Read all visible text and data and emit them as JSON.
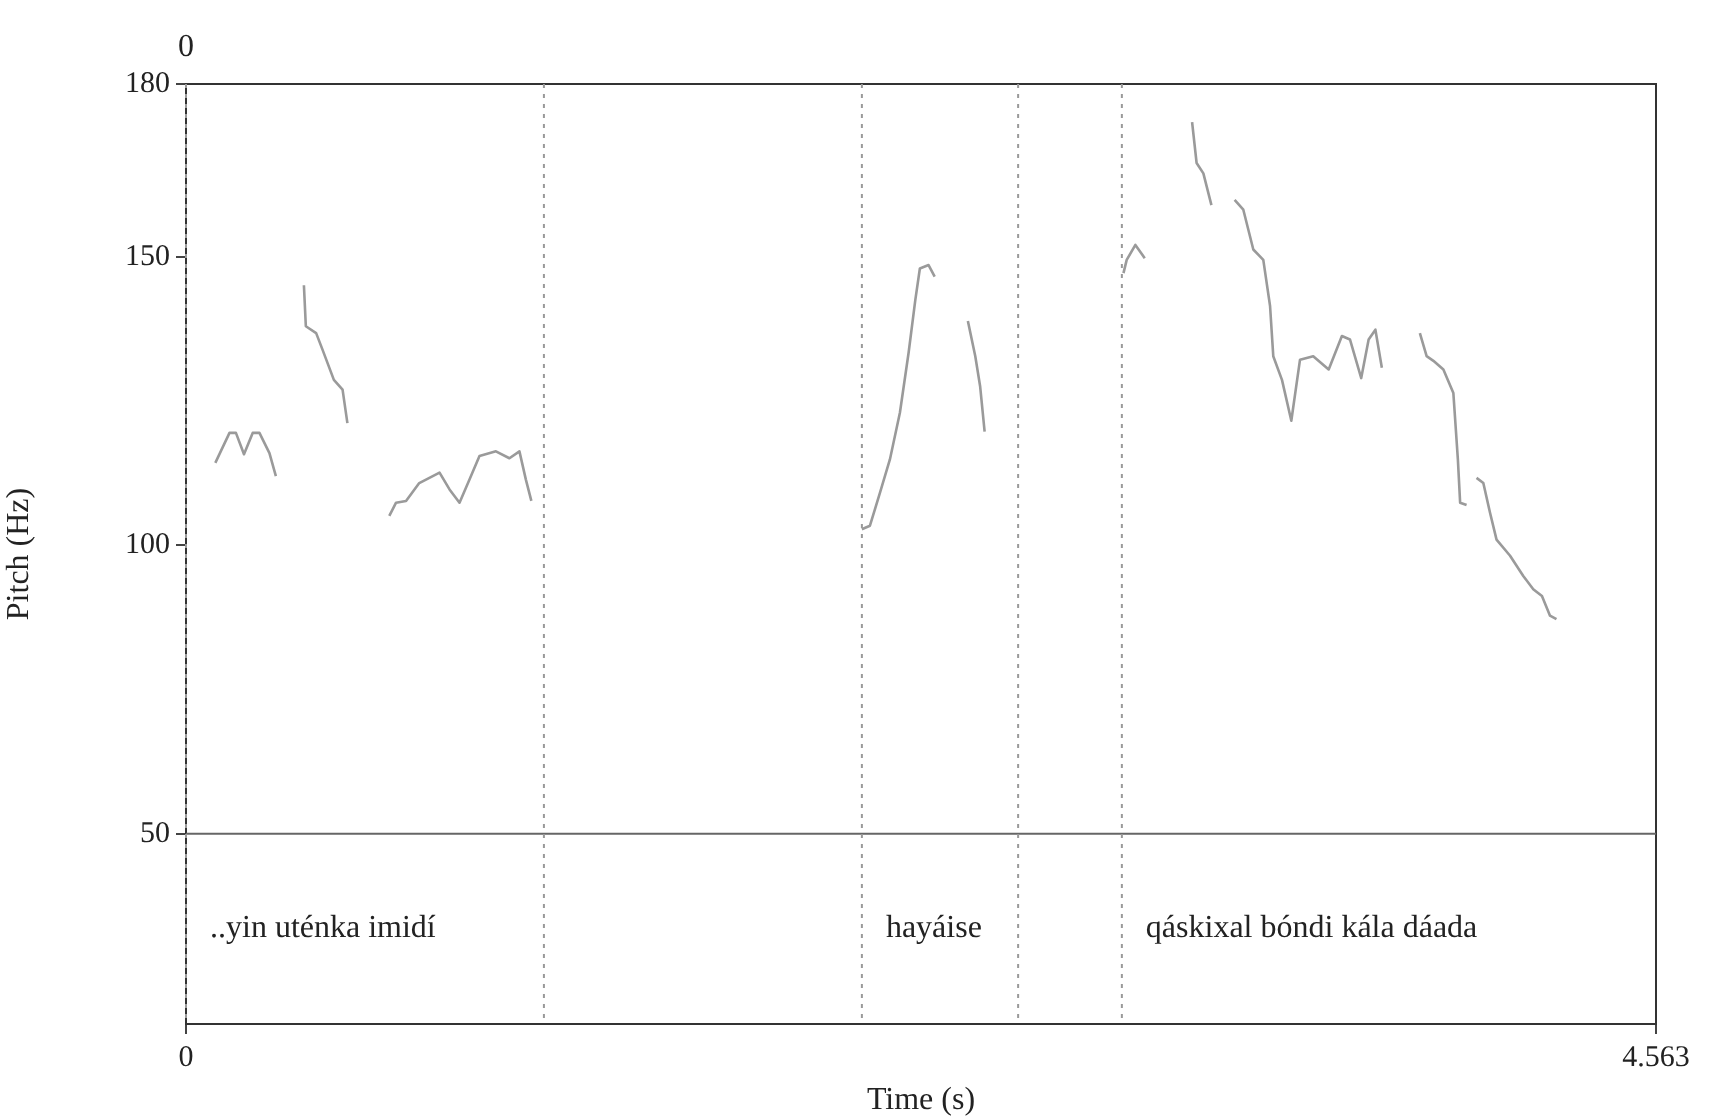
{
  "chart_data": {
    "type": "line",
    "xlabel": "Time (s)",
    "ylabel": "Pitch (Hz)",
    "xlim": [
      0,
      4.563
    ],
    "xticks": [
      0,
      4.563
    ],
    "ylim": [
      17,
      180
    ],
    "yticks": [
      50,
      100,
      150,
      180
    ],
    "marker": "none",
    "line_style": "solid",
    "legend": false,
    "series": [
      {
        "color": "#9a9a9a",
        "x": [
          0.091,
          0.135,
          0.155,
          0.18,
          0.207,
          0.228,
          0.259,
          0.279
        ],
        "values": [
          114.3,
          119.5,
          119.5,
          115.8,
          119.5,
          119.5,
          116.0,
          112.0
        ]
      },
      {
        "color": "#9a9a9a",
        "x": [
          0.366,
          0.372,
          0.404,
          0.424,
          0.459,
          0.486,
          0.501
        ],
        "values": [
          145.1,
          138.0,
          136.8,
          133.9,
          128.7,
          127.0,
          121.2
        ]
      },
      {
        "color": "#9a9a9a",
        "x": [
          0.631,
          0.652,
          0.683,
          0.724,
          0.787,
          0.818,
          0.849,
          0.88,
          0.911,
          0.962,
          1.004,
          1.035,
          1.055,
          1.072
        ],
        "values": [
          105.1,
          107.4,
          107.7,
          110.8,
          112.6,
          109.7,
          107.4,
          111.4,
          115.5,
          116.3,
          115.1,
          116.3,
          111.4,
          107.7
        ]
      },
      {
        "color": "#9a9a9a",
        "x": [
          2.098,
          2.123,
          2.154,
          2.185,
          2.216,
          2.243,
          2.264,
          2.278,
          2.305,
          2.324
        ],
        "values": [
          102.8,
          103.4,
          109.1,
          114.9,
          123.0,
          133.4,
          142.6,
          148.0,
          148.6,
          146.6
        ]
      },
      {
        "color": "#9a9a9a",
        "x": [
          2.427,
          2.45,
          2.465,
          2.479
        ],
        "values": [
          138.9,
          132.8,
          127.6,
          119.7
        ]
      },
      {
        "color": "#9a9a9a",
        "x": [
          2.91,
          2.92,
          2.947,
          2.976
        ],
        "values": [
          147.2,
          149.5,
          152.1,
          149.8
        ]
      },
      {
        "color": "#9a9a9a",
        "x": [
          3.123,
          3.137,
          3.158,
          3.183
        ],
        "values": [
          173.4,
          166.3,
          164.5,
          159.0
        ]
      },
      {
        "color": "#9a9a9a",
        "x": [
          3.255,
          3.282,
          3.313,
          3.344,
          3.365,
          3.375,
          3.402,
          3.431,
          3.458,
          3.499,
          3.547,
          3.588,
          3.613,
          3.648,
          3.671,
          3.692,
          3.712
        ],
        "values": [
          159.9,
          158.2,
          151.3,
          149.5,
          141.5,
          132.8,
          128.7,
          121.6,
          132.2,
          132.8,
          130.5,
          136.3,
          135.7,
          129.0,
          135.7,
          137.4,
          130.8
        ]
      },
      {
        "color": "#9a9a9a",
        "x": [
          3.83,
          3.851,
          3.872,
          3.903,
          3.934,
          3.948,
          3.955,
          3.975
        ],
        "values": [
          136.8,
          132.8,
          132.0,
          130.5,
          126.4,
          114.9,
          107.4,
          107.0
        ]
      },
      {
        "color": "#9a9a9a",
        "x": [
          4.006,
          4.027,
          4.048,
          4.068,
          4.11,
          4.151,
          4.182,
          4.209,
          4.234,
          4.254
        ],
        "values": [
          111.7,
          110.8,
          105.6,
          101.0,
          98.2,
          94.7,
          92.4,
          91.2,
          87.8,
          87.2
        ]
      }
    ],
    "ref_lines": [
      {
        "axis": "y",
        "value": 50,
        "color": "#666666",
        "line_style": "solid"
      },
      {
        "axis": "x",
        "value": 0,
        "label": "..yin uténka imidí"
      },
      {
        "axis": "x",
        "value": 1.111,
        "color": "#999999",
        "line_style": "dotted"
      },
      {
        "axis": "x",
        "value": 2.098,
        "color": "#999999",
        "line_style": "dotted",
        "label": "hayáise"
      },
      {
        "axis": "x",
        "value": 2.583,
        "color": "#999999",
        "line_style": "dotted"
      },
      {
        "axis": "x",
        "value": 2.905,
        "color": "#999999",
        "line_style": "dotted",
        "label": "qáskixal bóndi kála dáada"
      }
    ],
    "annotations": [
      "0"
    ]
  }
}
